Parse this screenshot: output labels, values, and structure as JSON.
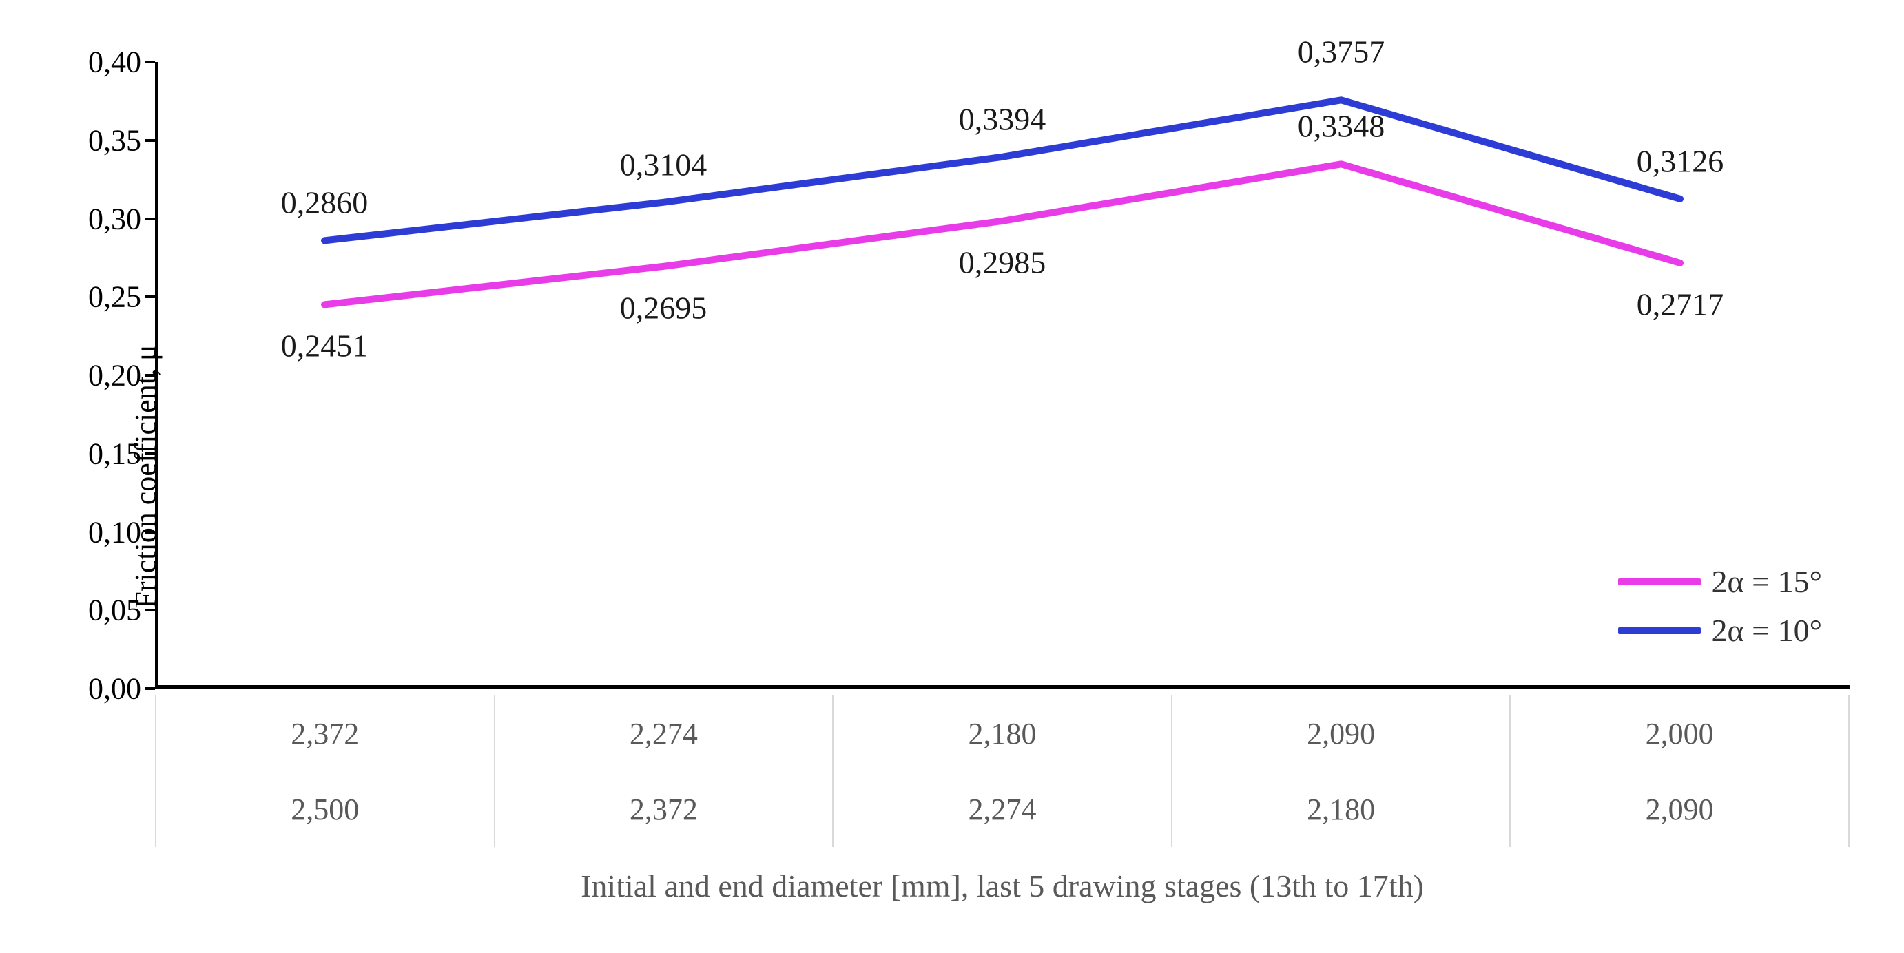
{
  "chart": {
    "type": "line",
    "background_color": "#ffffff",
    "ylabel": "Friction  coefficient,  μ",
    "ylabel_fontsize": 44,
    "ylabel_color": "#000000",
    "ylim": [
      0.0,
      0.4
    ],
    "ytick_step": 0.05,
    "yticks": [
      "0,00",
      "0,05",
      "0,10",
      "0,15",
      "0,20",
      "0,25",
      "0,30",
      "0,35",
      "0,40"
    ],
    "ytick_fontsize": 44,
    "ytick_color": "#000000",
    "axis_color": "#000000",
    "axis_width": 5,
    "grid": false,
    "x_positions": [
      0.1,
      0.3,
      0.5,
      0.7,
      0.9
    ],
    "series": [
      {
        "name": "2α = 10°",
        "color": "#2e3cd6",
        "line_width": 10,
        "values": [
          0.286,
          0.3104,
          0.3394,
          0.3757,
          0.3126
        ],
        "data_labels": [
          "0,2860",
          "0,3104",
          "0,3394",
          "0,3757",
          "0,3126"
        ],
        "label_position": "above"
      },
      {
        "name": "2α = 15°",
        "color": "#e83ce8",
        "line_width": 10,
        "values": [
          0.2451,
          0.2695,
          0.2985,
          0.3348,
          0.2717
        ],
        "data_labels": [
          "0,2451",
          "0,2695",
          "0,2985",
          "0,3348",
          "0,2717"
        ],
        "label_position": "below"
      }
    ],
    "data_label_fontsize": 46,
    "data_label_color": "#1a1a1a",
    "legend": {
      "position": "bottom-right-inside",
      "fontsize": 46,
      "text_color": "#333333",
      "swatch_width": 120,
      "swatch_height": 10,
      "items": [
        {
          "label": "2α = 15°",
          "color": "#e83ce8"
        },
        {
          "label": "2α = 10°",
          "color": "#2e3cd6"
        }
      ]
    },
    "x_table": {
      "border_color": "#d9d9d9",
      "text_color": "#595959",
      "fontsize": 44,
      "rows": [
        [
          "2,372",
          "2,274",
          "2,180",
          "2,090",
          "2,000"
        ],
        [
          "2,500",
          "2,372",
          "2,274",
          "2,180",
          "2,090"
        ]
      ]
    },
    "x_axis_title": "Initial and end diameter [mm], last 5 drawing stages (13th to 17th)",
    "x_axis_title_fontsize": 46,
    "x_axis_title_color": "#595959"
  }
}
